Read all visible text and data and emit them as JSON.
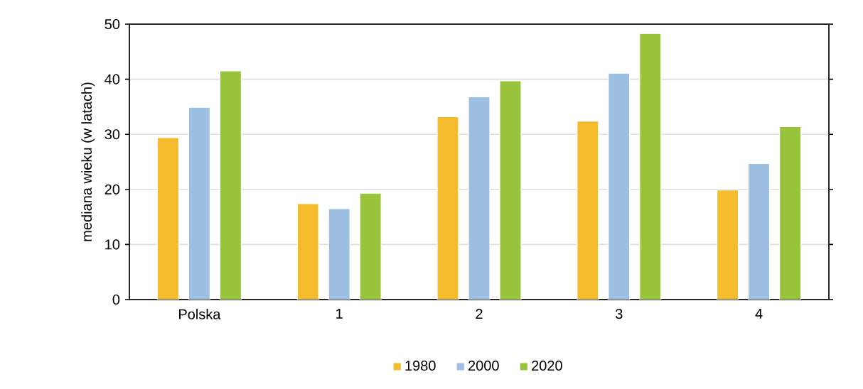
{
  "chart_data": {
    "type": "bar",
    "ylabel": "mediana wieku (w latach)",
    "categories": [
      "Polska",
      "1",
      "2",
      "3",
      "4"
    ],
    "series": [
      {
        "name": "1980",
        "color": "#f4bc2c",
        "values": [
          29.4,
          17.4,
          33.2,
          32.4,
          19.9
        ]
      },
      {
        "name": "2000",
        "color": "#9dbfe2",
        "values": [
          34.9,
          16.5,
          36.8,
          41.1,
          24.7
        ]
      },
      {
        "name": "2020",
        "color": "#98c43c",
        "values": [
          41.5,
          19.3,
          39.7,
          48.3,
          31.4
        ]
      }
    ],
    "ylim": [
      0,
      50
    ],
    "yticks": [
      0,
      10,
      20,
      30,
      40,
      50
    ],
    "grid": "y",
    "legend": "bottom"
  }
}
